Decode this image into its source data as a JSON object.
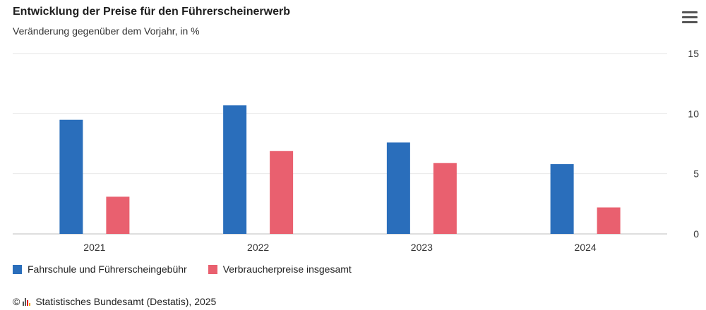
{
  "header": {
    "title": "Entwicklung der Preise für den Führerscheinerwerb",
    "subtitle": "Veränderung gegenüber dem Vorjahr, in %",
    "menu_icon": "hamburger-menu-icon"
  },
  "credit": {
    "copyright": "©",
    "text": "Statistisches Bundesamt (Destatis), 2025"
  },
  "chart_data": {
    "type": "bar",
    "categories": [
      "2021",
      "2022",
      "2023",
      "2024"
    ],
    "series": [
      {
        "name": "Fahrschule und Führerscheingebühr",
        "color": "#2a6ebb",
        "values": [
          9.5,
          10.7,
          7.6,
          5.8
        ]
      },
      {
        "name": "Verbraucherpreise insgesamt",
        "color": "#e9606f",
        "values": [
          3.1,
          6.9,
          5.9,
          2.2
        ]
      }
    ],
    "ylim": [
      0,
      15
    ],
    "yticks": [
      0,
      5,
      10,
      15
    ],
    "grid": true,
    "y_axis_side": "right",
    "legend_position": "bottom-left"
  }
}
